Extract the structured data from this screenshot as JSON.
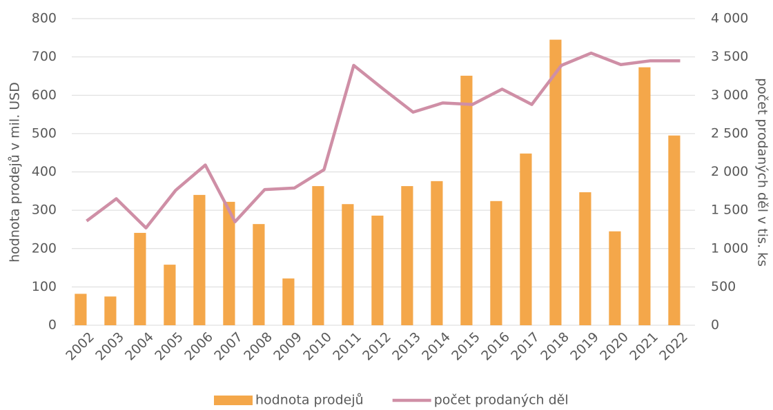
{
  "chart_data": {
    "type": "bar-line",
    "categories": [
      "2002",
      "2003",
      "2004",
      "2005",
      "2006",
      "2007",
      "2008",
      "2009",
      "2010",
      "2011",
      "2012",
      "2013",
      "2014",
      "2015",
      "2016",
      "2017",
      "2018",
      "2019",
      "2020",
      "2021",
      "2022"
    ],
    "series": [
      {
        "name": "hodnota prodejů",
        "type": "bar",
        "color": "#f4a74a",
        "axis": "y",
        "values": [
          82,
          75,
          241,
          158,
          340,
          322,
          264,
          122,
          363,
          316,
          286,
          363,
          376,
          651,
          324,
          448,
          745,
          347,
          245,
          673,
          495
        ]
      },
      {
        "name": "počet prodaných děl",
        "type": "line",
        "color": "#cf8fa6",
        "axis": "y2",
        "values": [
          1360,
          1650,
          1270,
          1760,
          2090,
          1350,
          1770,
          1790,
          2030,
          3390,
          3080,
          2780,
          2900,
          2880,
          3080,
          2880,
          3390,
          3550,
          3400,
          3450,
          3450
        ]
      }
    ],
    "ylabel": "hodnota prodejů v mil. USD",
    "y2label": "počet prodaných děl v tis. ks",
    "ylim": [
      0,
      800
    ],
    "yticks": [
      0,
      100,
      200,
      300,
      400,
      500,
      600,
      700,
      800
    ],
    "y2lim": [
      0,
      4000
    ],
    "y2ticks": [
      0,
      500,
      {
        "value": 1000,
        "label": "1 000"
      },
      {
        "value": 1500,
        "label": "1 500"
      },
      {
        "value": 2000,
        "label": "2 000"
      },
      {
        "value": 2500,
        "label": "2 500"
      },
      {
        "value": 3000,
        "label": "3 000"
      },
      {
        "value": 3500,
        "label": "3 500"
      },
      {
        "value": 4000,
        "label": "4 000"
      }
    ],
    "grid": true,
    "legend": "bottom"
  }
}
